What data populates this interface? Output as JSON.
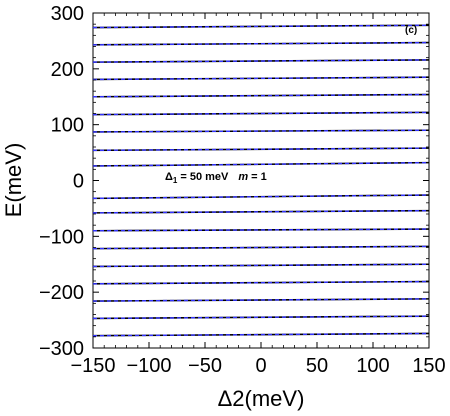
{
  "chart_data": {
    "type": "line",
    "panel_label": "(c)",
    "xlabel": "Δ2(meV)",
    "ylabel": "E(meV)",
    "xlim": [
      -150,
      150
    ],
    "ylim": [
      -300,
      300
    ],
    "xticks": [
      -150,
      -100,
      -50,
      0,
      50,
      100,
      150
    ],
    "yticks": [
      300,
      200,
      100,
      0,
      -100,
      -200,
      -300
    ],
    "xtick_labels": [
      "−150",
      "−100",
      "−50",
      "0",
      "50",
      "100",
      "150"
    ],
    "ytick_labels": [
      "300",
      "200",
      "100",
      "0",
      "−100",
      "−200",
      "−300"
    ],
    "annotation": {
      "delta_symbol": "Δ",
      "delta_subscript": "1",
      "delta_value": "= 50 meV",
      "m_symbol": "m",
      "m_value": "= 1"
    },
    "grid": false,
    "series_colors": {
      "solid": "#000000",
      "dashed": "#3333ff"
    },
    "levels": [
      {
        "x": [
          -150,
          150
        ],
        "y": [
          274,
          278
        ]
      },
      {
        "x": [
          -150,
          150
        ],
        "y": [
          243,
          247
        ]
      },
      {
        "x": [
          -150,
          150
        ],
        "y": [
          212,
          216
        ]
      },
      {
        "x": [
          -150,
          150
        ],
        "y": [
          181,
          185
        ]
      },
      {
        "x": [
          -150,
          150
        ],
        "y": [
          150,
          154
        ]
      },
      {
        "x": [
          -150,
          150
        ],
        "y": [
          118,
          122
        ]
      },
      {
        "x": [
          -150,
          150
        ],
        "y": [
          87,
          90
        ]
      },
      {
        "x": [
          -150,
          150
        ],
        "y": [
          54,
          58
        ]
      },
      {
        "x": [
          -150,
          150
        ],
        "y": [
          26,
          32
        ]
      },
      {
        "x": [
          -150,
          150
        ],
        "y": [
          -32,
          -26
        ]
      },
      {
        "x": [
          -150,
          150
        ],
        "y": [
          -58,
          -54
        ]
      },
      {
        "x": [
          -150,
          150
        ],
        "y": [
          -90,
          -87
        ]
      },
      {
        "x": [
          -150,
          150
        ],
        "y": [
          -122,
          -118
        ]
      },
      {
        "x": [
          -150,
          150
        ],
        "y": [
          -154,
          -150
        ]
      },
      {
        "x": [
          -150,
          150
        ],
        "y": [
          -185,
          -181
        ]
      },
      {
        "x": [
          -150,
          150
        ],
        "y": [
          -216,
          -212
        ]
      },
      {
        "x": [
          -150,
          150
        ],
        "y": [
          -247,
          -243
        ]
      },
      {
        "x": [
          -150,
          150
        ],
        "y": [
          -278,
          -274
        ]
      }
    ]
  }
}
